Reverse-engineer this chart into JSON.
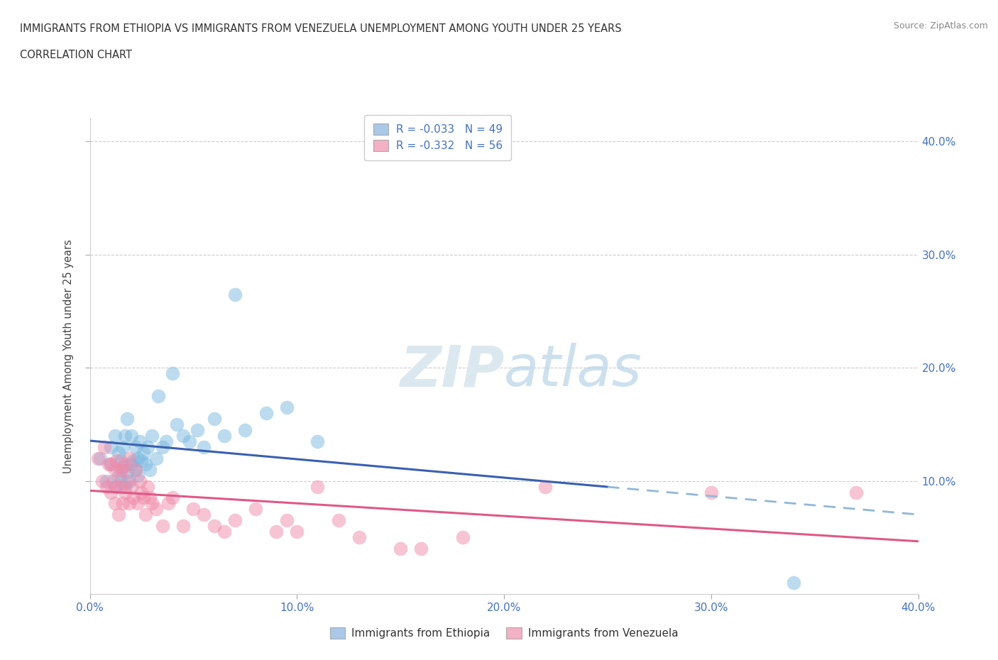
{
  "title_line1": "IMMIGRANTS FROM ETHIOPIA VS IMMIGRANTS FROM VENEZUELA UNEMPLOYMENT AMONG YOUTH UNDER 25 YEARS",
  "title_line2": "CORRELATION CHART",
  "source": "Source: ZipAtlas.com",
  "ylabel": "Unemployment Among Youth under 25 years",
  "xlim": [
    0.0,
    0.4
  ],
  "ylim": [
    0.0,
    0.42
  ],
  "xticks": [
    0.0,
    0.1,
    0.2,
    0.3,
    0.4
  ],
  "yticks": [
    0.1,
    0.2,
    0.3,
    0.4
  ],
  "xticklabels": [
    "0.0%",
    "10.0%",
    "20.0%",
    "30.0%",
    "40.0%"
  ],
  "right_yticklabels": [
    "10.0%",
    "20.0%",
    "30.0%",
    "40.0%"
  ],
  "right_yticks": [
    0.1,
    0.2,
    0.3,
    0.4
  ],
  "legend_entries": [
    {
      "label": "R = -0.033   N = 49",
      "color": "#aac8e8"
    },
    {
      "label": "R = -0.332   N = 56",
      "color": "#f4b0c4"
    }
  ],
  "bottom_legend": [
    {
      "label": "Immigrants from Ethiopia",
      "color": "#aac8e8"
    },
    {
      "label": "Immigrants from Venezuela",
      "color": "#f4b0c4"
    }
  ],
  "ethiopia_color": "#7ab8e0",
  "venezuela_color": "#f08aaa",
  "ethiopia_line_color": "#3a60b0",
  "venezuela_line_color": "#e05888",
  "ethiopia_line_dashed_color": "#90b8d8",
  "grid_color": "#cccccc",
  "watermark_color": "#dce8f0",
  "ethiopia_x": [
    0.005,
    0.008,
    0.01,
    0.01,
    0.012,
    0.012,
    0.014,
    0.014,
    0.015,
    0.015,
    0.016,
    0.016,
    0.017,
    0.017,
    0.018,
    0.018,
    0.019,
    0.02,
    0.02,
    0.021,
    0.022,
    0.022,
    0.023,
    0.023,
    0.024,
    0.025,
    0.026,
    0.027,
    0.028,
    0.029,
    0.03,
    0.032,
    0.033,
    0.035,
    0.037,
    0.04,
    0.042,
    0.045,
    0.048,
    0.052,
    0.055,
    0.06,
    0.065,
    0.07,
    0.075,
    0.085,
    0.095,
    0.11,
    0.34
  ],
  "ethiopia_y": [
    0.12,
    0.1,
    0.115,
    0.13,
    0.095,
    0.14,
    0.105,
    0.125,
    0.1,
    0.118,
    0.112,
    0.13,
    0.095,
    0.14,
    0.108,
    0.155,
    0.1,
    0.115,
    0.14,
    0.118,
    0.11,
    0.13,
    0.105,
    0.12,
    0.135,
    0.118,
    0.125,
    0.115,
    0.13,
    0.11,
    0.14,
    0.12,
    0.175,
    0.13,
    0.135,
    0.195,
    0.15,
    0.14,
    0.135,
    0.145,
    0.13,
    0.155,
    0.14,
    0.265,
    0.145,
    0.16,
    0.165,
    0.135,
    0.01
  ],
  "venezuela_x": [
    0.004,
    0.006,
    0.007,
    0.008,
    0.009,
    0.01,
    0.01,
    0.011,
    0.012,
    0.012,
    0.013,
    0.013,
    0.014,
    0.015,
    0.015,
    0.016,
    0.016,
    0.017,
    0.017,
    0.018,
    0.019,
    0.019,
    0.02,
    0.021,
    0.022,
    0.023,
    0.024,
    0.025,
    0.026,
    0.027,
    0.028,
    0.029,
    0.03,
    0.032,
    0.035,
    0.038,
    0.04,
    0.045,
    0.05,
    0.055,
    0.06,
    0.065,
    0.07,
    0.08,
    0.09,
    0.095,
    0.1,
    0.11,
    0.12,
    0.13,
    0.15,
    0.16,
    0.18,
    0.22,
    0.3,
    0.37
  ],
  "venezuela_y": [
    0.12,
    0.1,
    0.13,
    0.095,
    0.115,
    0.09,
    0.115,
    0.1,
    0.08,
    0.11,
    0.095,
    0.118,
    0.07,
    0.095,
    0.11,
    0.08,
    0.11,
    0.09,
    0.115,
    0.1,
    0.08,
    0.12,
    0.095,
    0.085,
    0.11,
    0.08,
    0.1,
    0.09,
    0.085,
    0.07,
    0.095,
    0.085,
    0.08,
    0.075,
    0.06,
    0.08,
    0.085,
    0.06,
    0.075,
    0.07,
    0.06,
    0.055,
    0.065,
    0.075,
    0.055,
    0.065,
    0.055,
    0.095,
    0.065,
    0.05,
    0.04,
    0.04,
    0.05,
    0.095,
    0.09,
    0.09
  ]
}
